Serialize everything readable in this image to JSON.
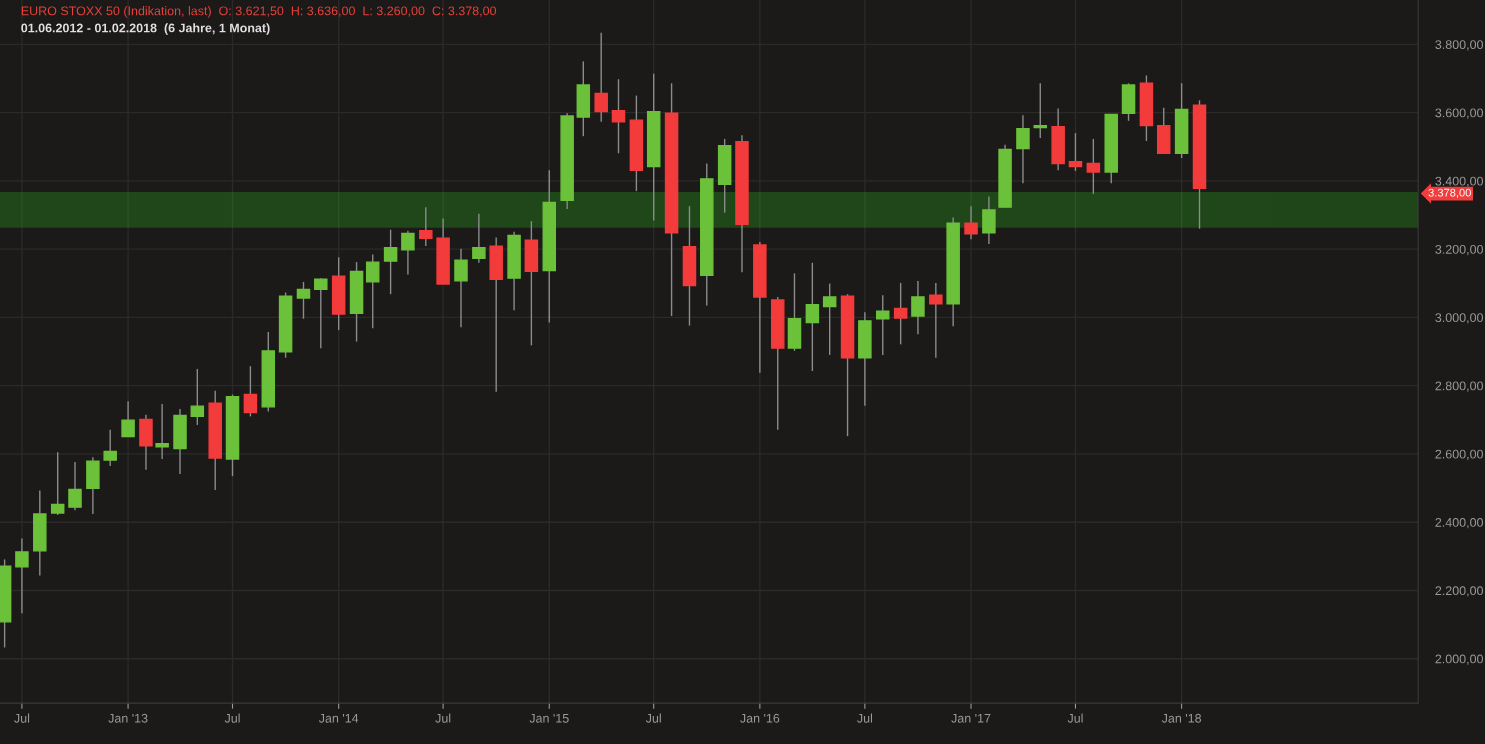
{
  "chart_data": {
    "type": "candlestick",
    "title": "EURO STOXX 50 (Indikation, last)  O: 3.621,50  H: 3.636,00  L: 3.260,00  C: 3.378,00",
    "subtitle": "01.06.2012 - 01.02.2018  (6 Jahre, 1 Monat)",
    "x": [
      "2012-06",
      "2012-07",
      "2012-08",
      "2012-09",
      "2012-10",
      "2012-11",
      "2012-12",
      "2013-01",
      "2013-02",
      "2013-03",
      "2013-04",
      "2013-05",
      "2013-06",
      "2013-07",
      "2013-08",
      "2013-09",
      "2013-10",
      "2013-11",
      "2013-12",
      "2014-01",
      "2014-02",
      "2014-03",
      "2014-04",
      "2014-05",
      "2014-06",
      "2014-07",
      "2014-08",
      "2014-09",
      "2014-10",
      "2014-11",
      "2014-12",
      "2015-01",
      "2015-02",
      "2015-03",
      "2015-04",
      "2015-05",
      "2015-06",
      "2015-07",
      "2015-08",
      "2015-09",
      "2015-10",
      "2015-11",
      "2015-12",
      "2016-01",
      "2016-02",
      "2016-03",
      "2016-04",
      "2016-05",
      "2016-06",
      "2016-07",
      "2016-08",
      "2016-09",
      "2016-10",
      "2016-11",
      "2016-12",
      "2017-01",
      "2017-02",
      "2017-03",
      "2017-04",
      "2017-05",
      "2017-06",
      "2017-07",
      "2017-08",
      "2017-09",
      "2017-10",
      "2017-11",
      "2017-12",
      "2018-01",
      "2018-02"
    ],
    "ohlc": [
      [
        2108,
        2291,
        2033,
        2271
      ],
      [
        2269,
        2352,
        2133,
        2313
      ],
      [
        2316,
        2493,
        2244,
        2424
      ],
      [
        2427,
        2605,
        2421,
        2452
      ],
      [
        2444,
        2576,
        2435,
        2496
      ],
      [
        2499,
        2590,
        2424,
        2579
      ],
      [
        2582,
        2671,
        2565,
        2607
      ],
      [
        2651,
        2754,
        2651,
        2699
      ],
      [
        2701,
        2715,
        2554,
        2624
      ],
      [
        2621,
        2746,
        2585,
        2630
      ],
      [
        2616,
        2732,
        2541,
        2713
      ],
      [
        2710,
        2849,
        2685,
        2740
      ],
      [
        2749,
        2785,
        2494,
        2588
      ],
      [
        2585,
        2774,
        2535,
        2768
      ],
      [
        2774,
        2857,
        2710,
        2721
      ],
      [
        2738,
        2957,
        2724,
        2902
      ],
      [
        2899,
        3073,
        2882,
        3062
      ],
      [
        3057,
        3104,
        2996,
        3082
      ],
      [
        3082,
        3115,
        2910,
        3112
      ],
      [
        3121,
        3176,
        2963,
        3010
      ],
      [
        3012,
        3162,
        2929,
        3135
      ],
      [
        3104,
        3184,
        2968,
        3162
      ],
      [
        3165,
        3257,
        3068,
        3204
      ],
      [
        3198,
        3254,
        3126,
        3246
      ],
      [
        3254,
        3323,
        3209,
        3232
      ],
      [
        3232,
        3290,
        3098,
        3098
      ],
      [
        3107,
        3201,
        2971,
        3168
      ],
      [
        3173,
        3304,
        3160,
        3204
      ],
      [
        3209,
        3234,
        2782,
        3112
      ],
      [
        3115,
        3251,
        3021,
        3240
      ],
      [
        3226,
        3282,
        2918,
        3135
      ],
      [
        3137,
        3431,
        2985,
        3337
      ],
      [
        3343,
        3598,
        3318,
        3590
      ],
      [
        3587,
        3750,
        3531,
        3681
      ],
      [
        3656,
        3834,
        3573,
        3603
      ],
      [
        3606,
        3698,
        3481,
        3573
      ],
      [
        3578,
        3650,
        3370,
        3431
      ],
      [
        3442,
        3714,
        3284,
        3603
      ],
      [
        3598,
        3686,
        3004,
        3248
      ],
      [
        3207,
        3326,
        2976,
        3093
      ],
      [
        3123,
        3451,
        3035,
        3406
      ],
      [
        3390,
        3523,
        3307,
        3503
      ],
      [
        3515,
        3534,
        3132,
        3273
      ],
      [
        3212,
        3221,
        2838,
        3060
      ],
      [
        3051,
        3060,
        2671,
        2910
      ],
      [
        2910,
        3129,
        2902,
        2996
      ],
      [
        2985,
        3160,
        2843,
        3037
      ],
      [
        3032,
        3099,
        2890,
        3060
      ],
      [
        3062,
        3068,
        2652,
        2882
      ],
      [
        2882,
        3015,
        2741,
        2990
      ],
      [
        2996,
        3065,
        2890,
        3018
      ],
      [
        3026,
        3101,
        2921,
        2998
      ],
      [
        3004,
        3107,
        2951,
        3060
      ],
      [
        3065,
        3101,
        2882,
        3040
      ],
      [
        3040,
        3293,
        2974,
        3276
      ],
      [
        3276,
        3326,
        3229,
        3245
      ],
      [
        3248,
        3354,
        3215,
        3315
      ],
      [
        3323,
        3506,
        3323,
        3492
      ],
      [
        3495,
        3592,
        3393,
        3553
      ],
      [
        3556,
        3686,
        3526,
        3562
      ],
      [
        3559,
        3612,
        3431,
        3451
      ],
      [
        3456,
        3540,
        3429,
        3442
      ],
      [
        3451,
        3523,
        3362,
        3426
      ],
      [
        3426,
        3595,
        3393,
        3595
      ],
      [
        3598,
        3686,
        3576,
        3681
      ],
      [
        3686,
        3709,
        3517,
        3562
      ],
      [
        3562,
        3614,
        3481,
        3481
      ],
      [
        3481,
        3686,
        3467,
        3609
      ],
      [
        3621.5,
        3636,
        3260,
        3378
      ]
    ],
    "colors": [
      "#6cc13a",
      "#6cc13a",
      "#6cc13a",
      "#6cc13a",
      "#6cc13a",
      "#6cc13a",
      "#6cc13a",
      "#6cc13a",
      "#f33b3b",
      "#6cc13a",
      "#6cc13a",
      "#6cc13a",
      "#f33b3b",
      "#6cc13a",
      "#f33b3b",
      "#6cc13a",
      "#6cc13a",
      "#6cc13a",
      "#6cc13a",
      "#f33b3b",
      "#6cc13a",
      "#6cc13a",
      "#6cc13a",
      "#6cc13a",
      "#f33b3b",
      "#f33b3b",
      "#6cc13a",
      "#6cc13a",
      "#f33b3b",
      "#6cc13a",
      "#f33b3b",
      "#6cc13a",
      "#6cc13a",
      "#6cc13a",
      "#f33b3b",
      "#f33b3b",
      "#f33b3b",
      "#6cc13a",
      "#f33b3b",
      "#f33b3b",
      "#6cc13a",
      "#6cc13a",
      "#f33b3b",
      "#f33b3b",
      "#f33b3b",
      "#6cc13a",
      "#6cc13a",
      "#6cc13a",
      "#f33b3b",
      "#6cc13a",
      "#6cc13a",
      "#f33b3b",
      "#6cc13a",
      "#f33b3b",
      "#6cc13a",
      "#f33b3b",
      "#6cc13a",
      "#6cc13a",
      "#6cc13a",
      "#6cc13a",
      "#f33b3b",
      "#f33b3b",
      "#f33b3b",
      "#6cc13a",
      "#6cc13a",
      "#f33b3b",
      "#f33b3b",
      "#6cc13a",
      "#f33b3b"
    ],
    "xlim": [
      "2012-05-24",
      "2019-02-15"
    ],
    "xticks": [
      {
        "value": "2012-07",
        "label": "Jul"
      },
      {
        "value": "2013-01",
        "label": "Jan '13"
      },
      {
        "value": "2013-07",
        "label": "Jul"
      },
      {
        "value": "2014-01",
        "label": "Jan '14"
      },
      {
        "value": "2014-07",
        "label": "Jul"
      },
      {
        "value": "2015-01",
        "label": "Jan '15"
      },
      {
        "value": "2015-07",
        "label": "Jul"
      },
      {
        "value": "2016-01",
        "label": "Jan '16"
      },
      {
        "value": "2016-07",
        "label": "Jul"
      },
      {
        "value": "2017-01",
        "label": "Jan '17"
      },
      {
        "value": "2017-07",
        "label": "Jul"
      },
      {
        "value": "2018-01",
        "label": "Jan '18"
      }
    ],
    "ylim": [
      1870,
      3930
    ],
    "yticks": [
      {
        "value": 2000,
        "label": "2.000,00"
      },
      {
        "value": 2200,
        "label": "2.200,00"
      },
      {
        "value": 2400,
        "label": "2.400,00"
      },
      {
        "value": 2600,
        "label": "2.600,00"
      },
      {
        "value": 2800,
        "label": "2.800,00"
      },
      {
        "value": 3000,
        "label": "3.000,00"
      },
      {
        "value": 3200,
        "label": "3.200,00"
      },
      {
        "value": 3400,
        "label": "3.400,00"
      },
      {
        "value": 3600,
        "label": "3.600,00"
      },
      {
        "value": 3800,
        "label": "3.800,00"
      }
    ],
    "bands": [
      {
        "axis": "y",
        "from": 3265,
        "to": 3365,
        "color": "#2ecc1a"
      }
    ],
    "annotations": [
      "3.378,00"
    ],
    "grid": true
  }
}
